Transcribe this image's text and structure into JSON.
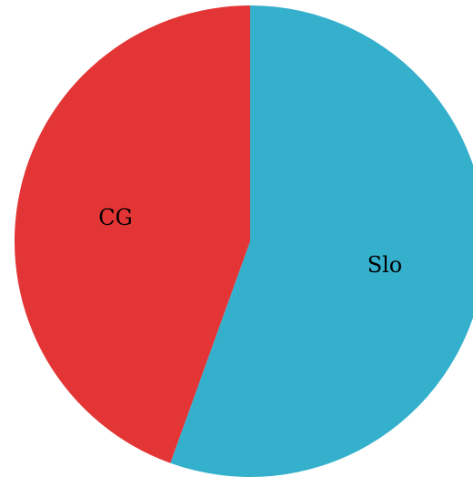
{
  "chart_data": {
    "type": "pie",
    "slices": [
      {
        "label": "Slo",
        "value": 55.5,
        "color": "#35b0cc"
      },
      {
        "label": "CG",
        "value": 44.5,
        "color": "#e33535"
      }
    ],
    "start_angle_deg": 0,
    "direction": "clockwise",
    "legend": "none"
  }
}
